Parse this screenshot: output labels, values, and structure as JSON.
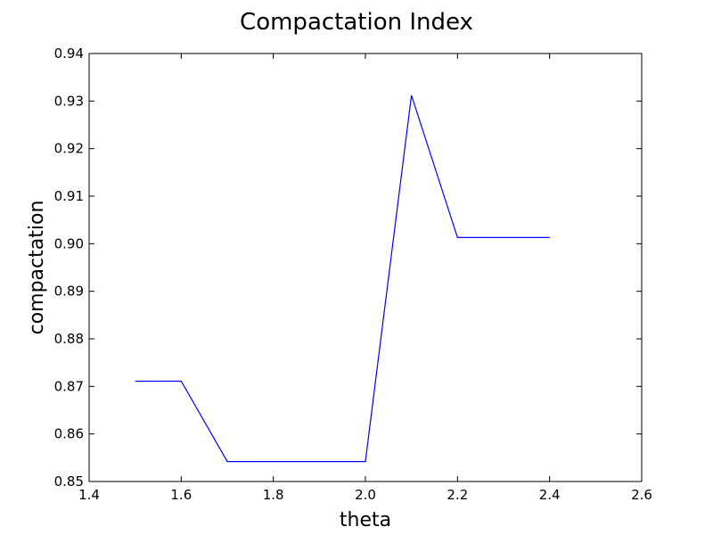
{
  "chart_data": {
    "type": "line",
    "title": "Compactation Index",
    "xlabel": "theta",
    "ylabel": "compactation",
    "xlim": [
      1.4,
      2.6
    ],
    "ylim": [
      0.85,
      0.94
    ],
    "x_ticks": [
      "1.4",
      "1.6",
      "1.8",
      "2.0",
      "2.2",
      "2.4",
      "2.6"
    ],
    "y_ticks": [
      "0.85",
      "0.86",
      "0.87",
      "0.88",
      "0.89",
      "0.90",
      "0.91",
      "0.92",
      "0.93",
      "0.94"
    ],
    "grid": false,
    "series": [
      {
        "color": "#0000ff",
        "x": [
          1.5,
          1.6,
          1.7,
          1.8,
          1.9,
          2.0,
          2.1,
          2.2,
          2.3,
          2.4
        ],
        "y": [
          0.8711,
          0.8711,
          0.8542,
          0.8542,
          0.8542,
          0.8542,
          0.9312,
          0.9013,
          0.9013,
          0.9013
        ]
      }
    ]
  }
}
